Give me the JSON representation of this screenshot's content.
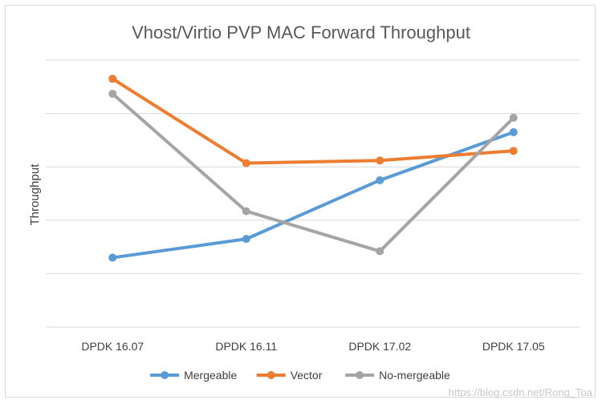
{
  "chart_data": {
    "type": "line",
    "title": "Vhost/Virtio PVP MAC Forward Throughput",
    "xlabel": "",
    "ylabel": "Throughput",
    "categories": [
      "DPDK 16.07",
      "DPDK 16.11",
      "DPDK 17.02",
      "DPDK 17.05"
    ],
    "ylim": [
      0,
      5
    ],
    "y_ticks_labeled": false,
    "grid": true,
    "legend_position": "bottom",
    "series": [
      {
        "name": "Mergeable",
        "color": "#5b9bd5",
        "values": [
          1.3,
          1.65,
          2.75,
          3.65
        ]
      },
      {
        "name": "Vector",
        "color": "#ed7d31",
        "values": [
          4.65,
          3.07,
          3.12,
          3.3
        ]
      },
      {
        "name": "No-mergeable",
        "color": "#a5a5a5",
        "values": [
          4.37,
          2.17,
          1.42,
          3.92
        ]
      }
    ]
  },
  "watermark": "https://blog.csdn.net/Rong_Toa"
}
